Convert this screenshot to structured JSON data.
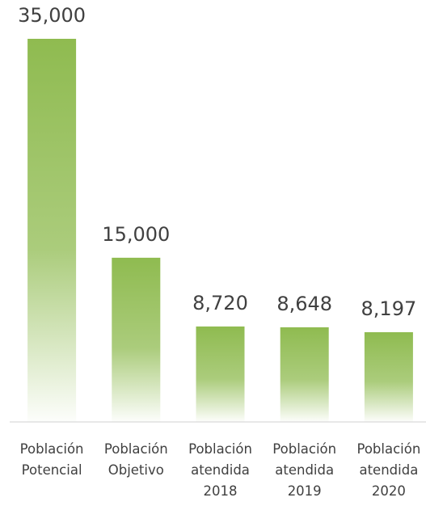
{
  "chart_data": {
    "type": "bar",
    "categories": [
      "Población Potencial",
      "Población Objetivo",
      "Población atendida 2018",
      "Población atendida 2019",
      "Población atendida 2020"
    ],
    "values": [
      35000,
      15000,
      8720,
      8648,
      8197
    ],
    "value_labels": [
      "35,000",
      "15,000",
      "8,720",
      "8,648",
      "8,197"
    ],
    "color": "#8fbb50",
    "ylim": [
      0,
      35000
    ]
  }
}
